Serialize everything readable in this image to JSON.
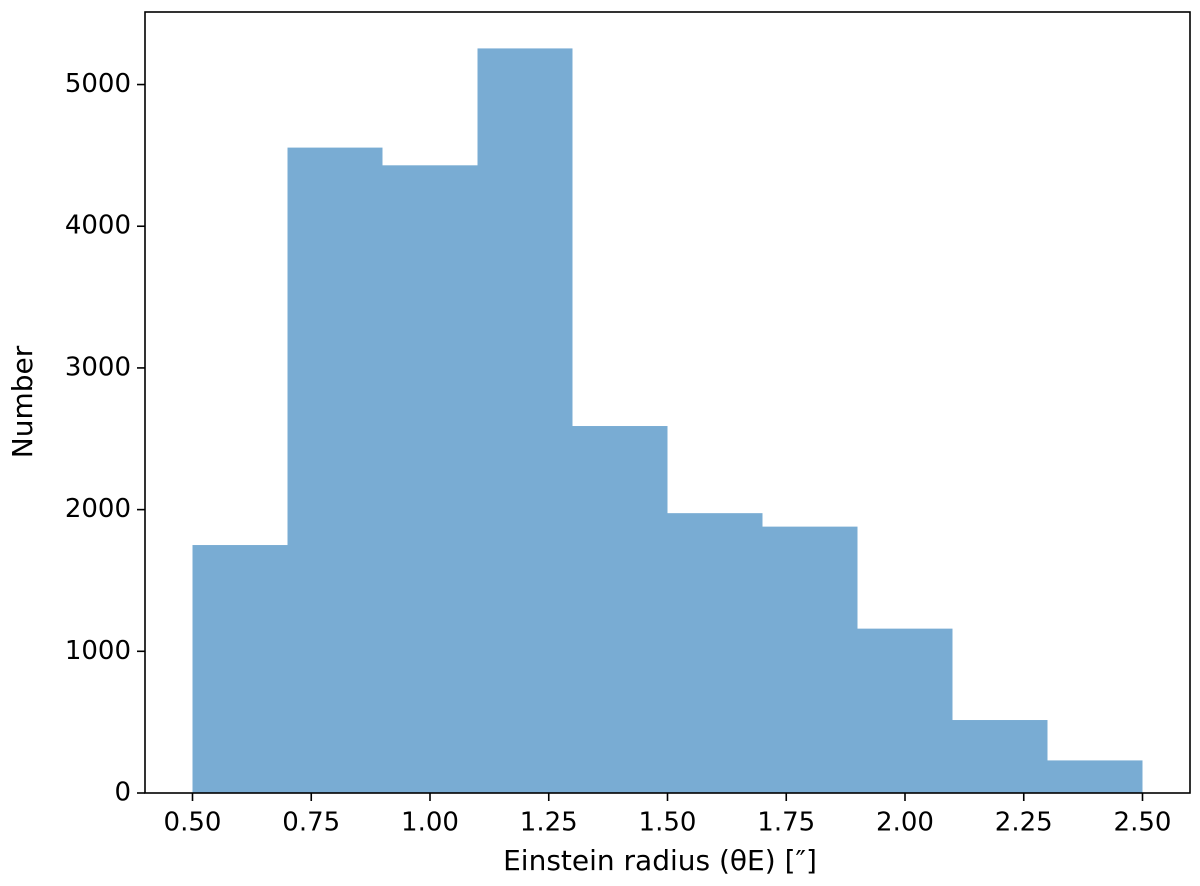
{
  "chart_data": {
    "type": "histogram",
    "xlabel": "Einstein radius (θE) [″]",
    "ylabel": "Number",
    "bins": [
      0.5,
      0.7,
      0.9,
      1.1,
      1.3,
      1.5,
      1.7,
      1.9,
      2.1,
      2.3,
      2.5
    ],
    "values": [
      1750,
      4555,
      4430,
      5255,
      2590,
      1975,
      1880,
      1160,
      515,
      230
    ],
    "color": "#79acd3",
    "xlim": [
      0.4,
      2.6
    ],
    "ylim": [
      0,
      5512
    ],
    "xticks": [
      {
        "value": 0.5,
        "label": "0.50"
      },
      {
        "value": 0.75,
        "label": "0.75"
      },
      {
        "value": 1.0,
        "label": "1.00"
      },
      {
        "value": 1.25,
        "label": "1.25"
      },
      {
        "value": 1.5,
        "label": "1.50"
      },
      {
        "value": 1.75,
        "label": "1.75"
      },
      {
        "value": 2.0,
        "label": "2.00"
      },
      {
        "value": 2.25,
        "label": "2.25"
      },
      {
        "value": 2.5,
        "label": "2.50"
      }
    ],
    "yticks": [
      0,
      1000,
      2000,
      3000,
      4000,
      5000
    ]
  }
}
